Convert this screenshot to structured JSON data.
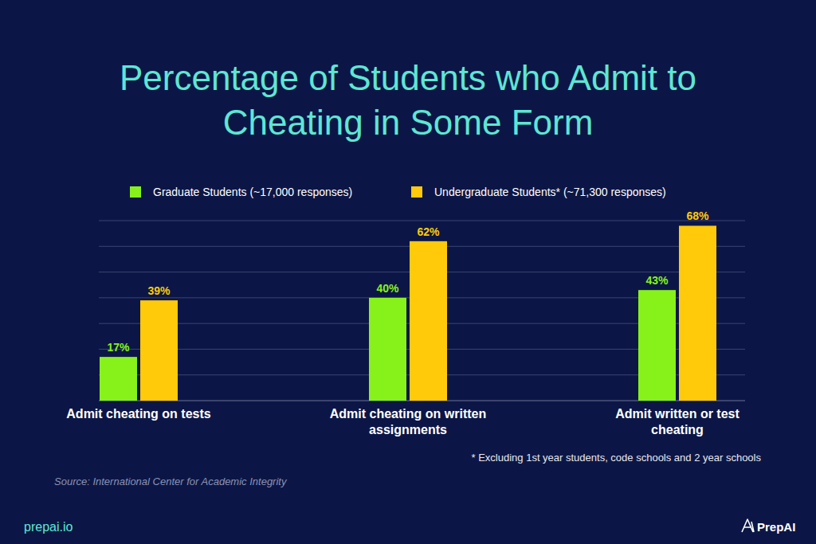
{
  "chart_data": {
    "type": "bar",
    "title": "Percentage of Students who Admit to Cheating in Some Form",
    "categories": [
      "Admit cheating on tests",
      "Admit cheating on written assignments",
      "Admit written or test cheating"
    ],
    "series": [
      {
        "name": "Graduate Students (~17,000 responses)",
        "color": "#86f21a",
        "values": [
          17,
          40,
          43
        ],
        "value_labels": [
          "17%",
          "40%",
          "43%"
        ]
      },
      {
        "name": "Undergraduate Students* (~71,300 responses)",
        "color": "#ffca0a",
        "values": [
          39,
          62,
          68
        ],
        "value_labels": [
          "39%",
          "62%",
          "68%"
        ]
      }
    ],
    "ylim": [
      0,
      70
    ],
    "yticks": [
      0,
      10,
      20,
      30,
      40,
      50,
      60,
      70
    ],
    "grid": true,
    "legend": "top",
    "data_labels": true,
    "tick_labels": false,
    "footnote": "* Excluding 1st year students, code schools and 2 year schools",
    "source": "Source: International Center for Academic Integrity",
    "website": "prepai.io",
    "brand": "PrepAI"
  }
}
